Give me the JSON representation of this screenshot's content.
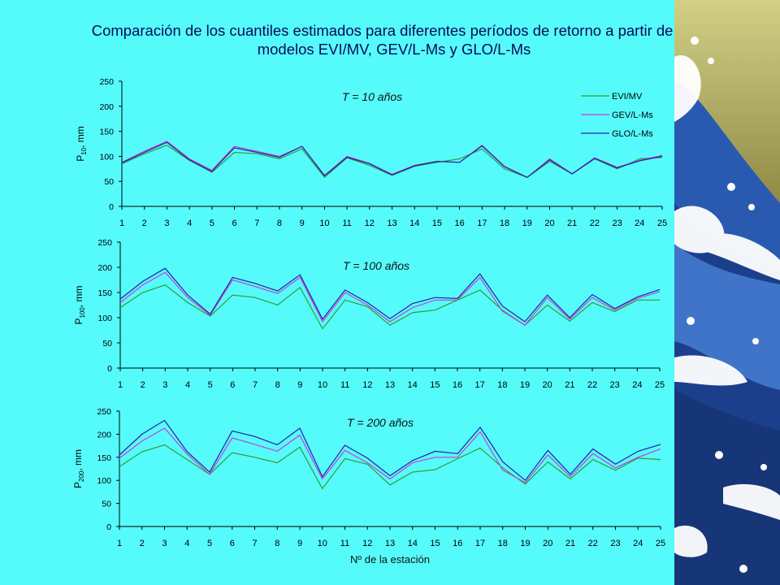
{
  "slide": {
    "title_line1": "Comparación de los cuantiles estimados para diferentes períodos de retorno a partir de los",
    "title_line2": "modelos EVI/MV, GEV/L-Ms y GLO/L-Ms"
  },
  "decoration": {
    "name": "wave-artwork",
    "colors": [
      "#c9c77a",
      "#1e3f8a",
      "#3f6fc7",
      "#ffffff"
    ]
  },
  "legend": {
    "placement": "top-right of first chart",
    "items": [
      {
        "name": "EVI/MV",
        "color": "#2e9e2e"
      },
      {
        "name": "GEV/L-Ms",
        "color": "#d03ad0"
      },
      {
        "name": "GLO/L-Ms",
        "color": "#2222aa"
      }
    ]
  },
  "chart_data": [
    {
      "type": "line",
      "annotation": "T = 10 años",
      "ylabel_main": "P",
      "ylabel_sub": "10",
      "ylabel_unit": ", mm",
      "xlabel": "",
      "ylim": [
        0,
        250
      ],
      "yticks": [
        0,
        50,
        100,
        150,
        200,
        250
      ],
      "x": [
        1,
        2,
        3,
        4,
        5,
        6,
        7,
        8,
        9,
        10,
        11,
        12,
        13,
        14,
        15,
        16,
        17,
        18,
        19,
        20,
        21,
        22,
        23,
        24,
        25
      ],
      "series": [
        {
          "name": "EVI/MV",
          "color": "#2e9e2e",
          "values": [
            85,
            105,
            122,
            92,
            68,
            108,
            105,
            95,
            115,
            58,
            97,
            82,
            62,
            80,
            88,
            95,
            115,
            75,
            58,
            90,
            65,
            95,
            75,
            95,
            98
          ]
        },
        {
          "name": "GEV/L-Ms",
          "color": "#d03ad0",
          "values": [
            88,
            110,
            130,
            95,
            72,
            120,
            110,
            100,
            120,
            62,
            100,
            86,
            64,
            82,
            90,
            88,
            122,
            80,
            58,
            95,
            65,
            97,
            78,
            92,
            102
          ]
        },
        {
          "name": "GLO/L-Ms",
          "color": "#2222aa",
          "values": [
            87,
            108,
            128,
            93,
            70,
            117,
            108,
            98,
            120,
            61,
            98,
            85,
            63,
            81,
            90,
            88,
            121,
            79,
            58,
            93,
            65,
            96,
            77,
            91,
            100
          ]
        }
      ]
    },
    {
      "type": "line",
      "annotation": "T = 100 años",
      "ylabel_main": "P",
      "ylabel_sub": "100",
      "ylabel_unit": ", mm",
      "xlabel": "",
      "ylim": [
        0,
        250
      ],
      "yticks": [
        0,
        50,
        100,
        150,
        200,
        250
      ],
      "x": [
        1,
        2,
        3,
        4,
        5,
        6,
        7,
        8,
        9,
        10,
        11,
        12,
        13,
        14,
        15,
        16,
        17,
        18,
        19,
        20,
        21,
        22,
        23,
        24,
        25
      ],
      "series": [
        {
          "name": "EVI/MV",
          "color": "#2e9e2e",
          "values": [
            120,
            150,
            165,
            130,
            103,
            145,
            140,
            125,
            160,
            78,
            135,
            122,
            85,
            110,
            115,
            135,
            155,
            115,
            85,
            125,
            93,
            130,
            112,
            135,
            135
          ]
        },
        {
          "name": "GEV/L-Ms",
          "color": "#d03ad0",
          "values": [
            130,
            165,
            190,
            140,
            105,
            175,
            162,
            148,
            180,
            92,
            150,
            125,
            92,
            120,
            135,
            135,
            180,
            113,
            85,
            140,
            97,
            140,
            115,
            138,
            152
          ]
        },
        {
          "name": "GLO/L-Ms",
          "color": "#2222aa",
          "values": [
            137,
            172,
            198,
            145,
            107,
            180,
            168,
            153,
            185,
            97,
            155,
            130,
            98,
            128,
            140,
            138,
            187,
            123,
            92,
            145,
            100,
            146,
            118,
            141,
            156
          ]
        }
      ]
    },
    {
      "type": "line",
      "annotation": "T = 200 años",
      "ylabel_main": "P",
      "ylabel_sub": "200",
      "ylabel_unit": ", mm",
      "xlabel": "Nº de la estación",
      "ylim": [
        0,
        250
      ],
      "yticks": [
        0,
        50,
        100,
        150,
        200,
        250
      ],
      "x": [
        1,
        2,
        3,
        4,
        5,
        6,
        7,
        8,
        9,
        10,
        11,
        12,
        13,
        14,
        15,
        16,
        17,
        18,
        19,
        20,
        21,
        22,
        23,
        24,
        25
      ],
      "series": [
        {
          "name": "EVI/MV",
          "color": "#2e9e2e",
          "values": [
            130,
            162,
            177,
            145,
            113,
            160,
            150,
            138,
            172,
            82,
            147,
            135,
            90,
            118,
            123,
            147,
            170,
            127,
            92,
            140,
            103,
            145,
            122,
            148,
            145
          ]
        },
        {
          "name": "GEV/L-Ms",
          "color": "#d03ad0",
          "values": [
            148,
            185,
            213,
            157,
            113,
            192,
            178,
            163,
            198,
            103,
            165,
            138,
            103,
            138,
            150,
            150,
            205,
            122,
            95,
            155,
            108,
            158,
            127,
            150,
            168
          ]
        },
        {
          "name": "GLO/L-Ms",
          "color": "#2222aa",
          "values": [
            155,
            200,
            230,
            162,
            118,
            207,
            195,
            177,
            213,
            108,
            176,
            148,
            110,
            143,
            163,
            158,
            215,
            140,
            100,
            165,
            113,
            168,
            135,
            163,
            178
          ]
        }
      ]
    }
  ]
}
